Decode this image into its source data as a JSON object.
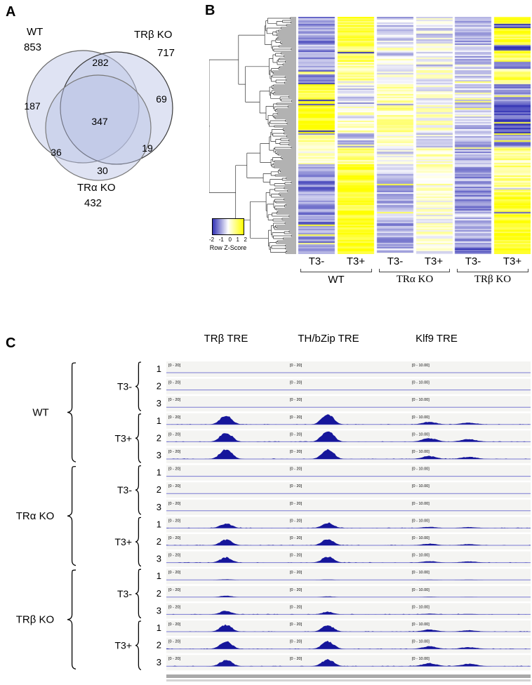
{
  "panel_labels": {
    "a": "A",
    "b": "B",
    "c": "C"
  },
  "colors": {
    "venn_fill": "#b8c2e4",
    "heat_low": "#3232b4",
    "heat_mid": "#ffffff",
    "heat_high": "#ffff00",
    "track_fill": "#16169b",
    "track_baseline": "#7a7ad2",
    "track_bg": "#f4f4f2"
  },
  "chart_data": [
    {
      "type": "venn",
      "panel": "A",
      "sets": [
        {
          "label": "WT",
          "total": "853"
        },
        {
          "label": "TRβ KO",
          "total": "717"
        },
        {
          "label": "TRα KO",
          "total": "432"
        }
      ],
      "overlaps": {
        "wt_only": "187",
        "wt_trb": "282",
        "trb_only": "69",
        "all_three": "347",
        "trb_tra": "19",
        "wt_tra": "36",
        "tra_only": "30"
      }
    },
    {
      "type": "heatmap",
      "panel": "B",
      "colorbar": {
        "label": "Row Z-Score",
        "ticks": [
          "-2",
          "-1",
          "0",
          "1",
          "2"
        ]
      },
      "zlim": [
        -2,
        2
      ],
      "columns": [
        {
          "group": "WT",
          "treatment": "T3-"
        },
        {
          "group": "WT",
          "treatment": "T3+"
        },
        {
          "group": "TRα KO",
          "treatment": "T3-"
        },
        {
          "group": "TRα KO",
          "treatment": "T3+"
        },
        {
          "group": "TRβ KO",
          "treatment": "T3-"
        },
        {
          "group": "TRβ KO",
          "treatment": "T3+"
        }
      ],
      "group_labels": [
        "WT",
        "TRα KO",
        "TRβ KO"
      ],
      "row_blocks": [
        {
          "rows": 5,
          "z": [
            -1.0,
            1.6,
            -0.5,
            -0.1,
            -0.6,
            1.5
          ]
        },
        {
          "rows": 3,
          "z": [
            -1.2,
            1.4,
            -0.4,
            0.0,
            -0.5,
            -1.6
          ]
        },
        {
          "rows": 12,
          "z": [
            -1.0,
            1.7,
            -0.6,
            -0.2,
            -0.7,
            1.6
          ]
        },
        {
          "rows": 4,
          "z": [
            -0.8,
            1.2,
            0.2,
            0.1,
            -0.4,
            -1.8
          ]
        },
        {
          "rows": 8,
          "z": [
            -1.1,
            1.5,
            -0.5,
            -0.1,
            -0.6,
            1.4
          ]
        },
        {
          "rows": 5,
          "z": [
            -0.5,
            0.8,
            -0.2,
            0.2,
            -0.3,
            -1.5
          ]
        },
        {
          "rows": 6,
          "z": [
            0.8,
            0.6,
            0.1,
            0.3,
            -0.2,
            1.0
          ]
        },
        {
          "rows": 5,
          "z": [
            -1.3,
            0.9,
            -0.4,
            0.1,
            -0.5,
            1.2
          ]
        },
        {
          "rows": 12,
          "z": [
            1.6,
            -0.2,
            0.5,
            0.1,
            -0.3,
            -0.9
          ]
        },
        {
          "rows": 23,
          "z": [
            1.8,
            0.4,
            0.7,
            0.3,
            -0.5,
            -1.7
          ]
        },
        {
          "rows": 10,
          "z": [
            0.9,
            -0.5,
            0.3,
            -0.2,
            -0.6,
            -1.2
          ]
        },
        {
          "rows": 12,
          "z": [
            0.4,
            0.9,
            -0.3,
            0.4,
            -0.8,
            0.8
          ]
        },
        {
          "rows": 20,
          "z": [
            -1.2,
            1.6,
            -0.7,
            0.4,
            -0.9,
            0.9
          ]
        },
        {
          "rows": 15,
          "z": [
            -1.0,
            1.7,
            -0.6,
            0.3,
            -1.0,
            1.4
          ]
        },
        {
          "rows": 25,
          "z": [
            -1.1,
            1.8,
            -0.8,
            0.2,
            -0.7,
            1.7
          ]
        },
        {
          "rows": 4,
          "z": [
            -0.9,
            1.5,
            -0.5,
            0.0,
            -1.5,
            1.8
          ]
        }
      ]
    },
    {
      "type": "genome-tracks",
      "panel": "C",
      "loci": [
        {
          "label": "TRβ TRE",
          "scale": "[0 - 20]"
        },
        {
          "label": "TH/bZip TRE",
          "scale": "[0 - 20]"
        },
        {
          "label": "Klf9 TRE",
          "scale": "[0 - 10.00]"
        }
      ],
      "groups": [
        {
          "label": "WT",
          "conditions": [
            {
              "label": "T3-",
              "replicates": [
                "1",
                "2",
                "3"
              ],
              "signal": [
                [
                  0,
                  0,
                  0,
                  0
                ],
                [
                  0,
                  0,
                  0,
                  0
                ],
                [
                  0,
                  0,
                  0,
                  0
                ]
              ]
            },
            {
              "label": "T3+",
              "replicates": [
                "1",
                "2",
                "3"
              ],
              "signal": [
                [
                  0.8,
                  0.95,
                  0.22,
                  0.15
                ],
                [
                  0.85,
                  1.0,
                  0.3,
                  0.22
                ],
                [
                  0.9,
                  0.9,
                  0.25,
                  0.18
                ]
              ]
            }
          ]
        },
        {
          "label": "TRα KO",
          "conditions": [
            {
              "label": "T3-",
              "replicates": [
                "1",
                "2",
                "3"
              ],
              "signal": [
                [
                  0,
                  0,
                  0,
                  0
                ],
                [
                  0,
                  0,
                  0,
                  0
                ],
                [
                  0,
                  0,
                  0,
                  0
                ]
              ]
            },
            {
              "label": "T3+",
              "replicates": [
                "1",
                "2",
                "3"
              ],
              "signal": [
                [
                  0.4,
                  0.45,
                  0.1,
                  0.08
                ],
                [
                  0.5,
                  0.55,
                  0.14,
                  0.1
                ],
                [
                  0.45,
                  0.5,
                  0.12,
                  0.1
                ]
              ]
            }
          ]
        },
        {
          "label": "TRβ KO",
          "conditions": [
            {
              "label": "T3-",
              "replicates": [
                "1",
                "2",
                "3"
              ],
              "signal": [
                [
                  0.05,
                  0.03,
                  0.02,
                  0.02
                ],
                [
                  0.12,
                  0.06,
                  0.03,
                  0.02
                ],
                [
                  0.3,
                  0.22,
                  0.06,
                  0.04
                ]
              ]
            },
            {
              "label": "T3+",
              "replicates": [
                "1",
                "2",
                "3"
              ],
              "signal": [
                [
                  0.6,
                  0.55,
                  0.18,
                  0.12
                ],
                [
                  0.7,
                  0.68,
                  0.22,
                  0.15
                ],
                [
                  0.55,
                  0.6,
                  0.26,
                  0.2
                ]
              ]
            }
          ]
        }
      ]
    }
  ]
}
